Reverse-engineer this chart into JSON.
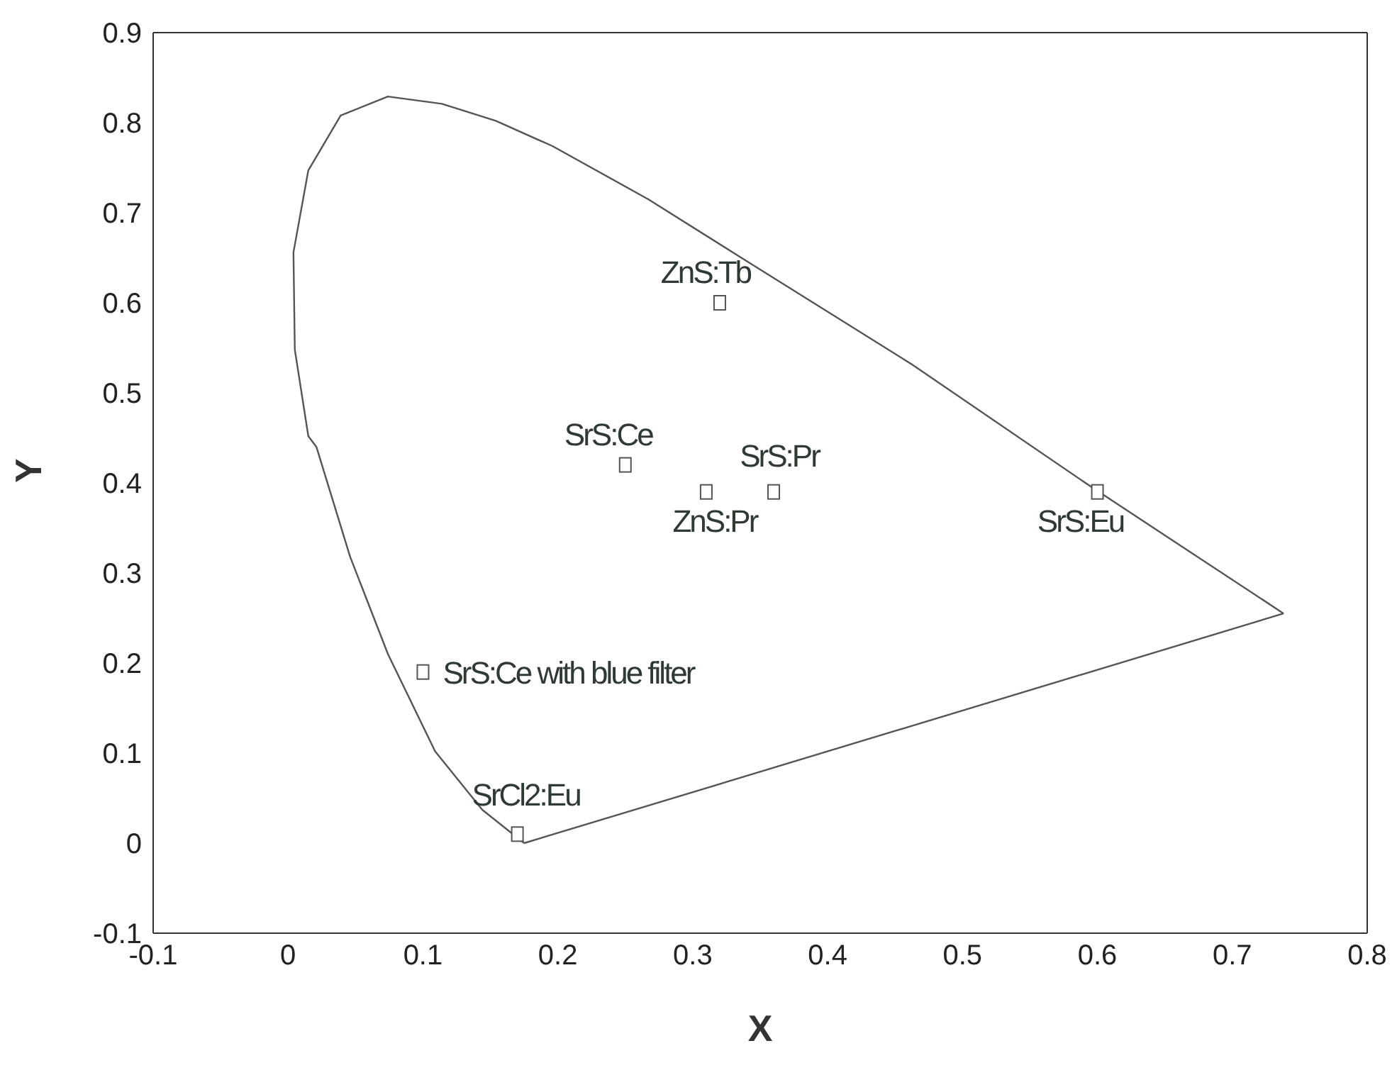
{
  "chart_data": {
    "type": "scatter",
    "xlabel": "X",
    "ylabel": "Y",
    "xlim": [
      -0.1,
      0.8
    ],
    "xticks": [
      -0.1,
      0,
      0.1,
      0.2,
      0.3,
      0.4,
      0.5,
      0.6,
      0.7,
      0.8
    ],
    "ylim": [
      -0.1,
      0.9
    ],
    "yticks": [
      -0.1,
      0,
      0.1,
      0.2,
      0.3,
      0.4,
      0.5,
      0.6,
      0.7,
      0.8,
      0.9
    ],
    "series": [
      {
        "type": "line",
        "color": "#555555",
        "marker": "none",
        "x": [
          0.175,
          0.144,
          0.109,
          0.074,
          0.046,
          0.021,
          0.015,
          0.005,
          0.004,
          0.015,
          0.039,
          0.074,
          0.114,
          0.154,
          0.196,
          0.267,
          0.336,
          0.462,
          0.596,
          0.738
        ],
        "values": [
          0.0,
          0.037,
          0.102,
          0.21,
          0.318,
          0.44,
          0.452,
          0.548,
          0.656,
          0.747,
          0.808,
          0.829,
          0.821,
          0.802,
          0.774,
          0.715,
          0.65,
          0.532,
          0.395,
          0.255
        ]
      },
      {
        "type": "line",
        "color": "#555555",
        "marker": "none",
        "x": [
          0.175,
          0.738
        ],
        "values": [
          0.0,
          0.255
        ]
      },
      {
        "type": "scatter",
        "color": "#555555",
        "marker": "square",
        "x": [
          0.32,
          0.25,
          0.31,
          0.36,
          0.6,
          0.1,
          0.17
        ],
        "values": [
          0.6,
          0.42,
          0.39,
          0.39,
          0.39,
          0.19,
          0.01
        ],
        "value_labels": [
          "ZnS:Tb",
          "SrS:Ce",
          "ZnS:Pr",
          "SrS:Pr",
          "SrS:Eu",
          "SrS:Ce with blue filter",
          "SrCl2:Eu"
        ]
      }
    ]
  }
}
